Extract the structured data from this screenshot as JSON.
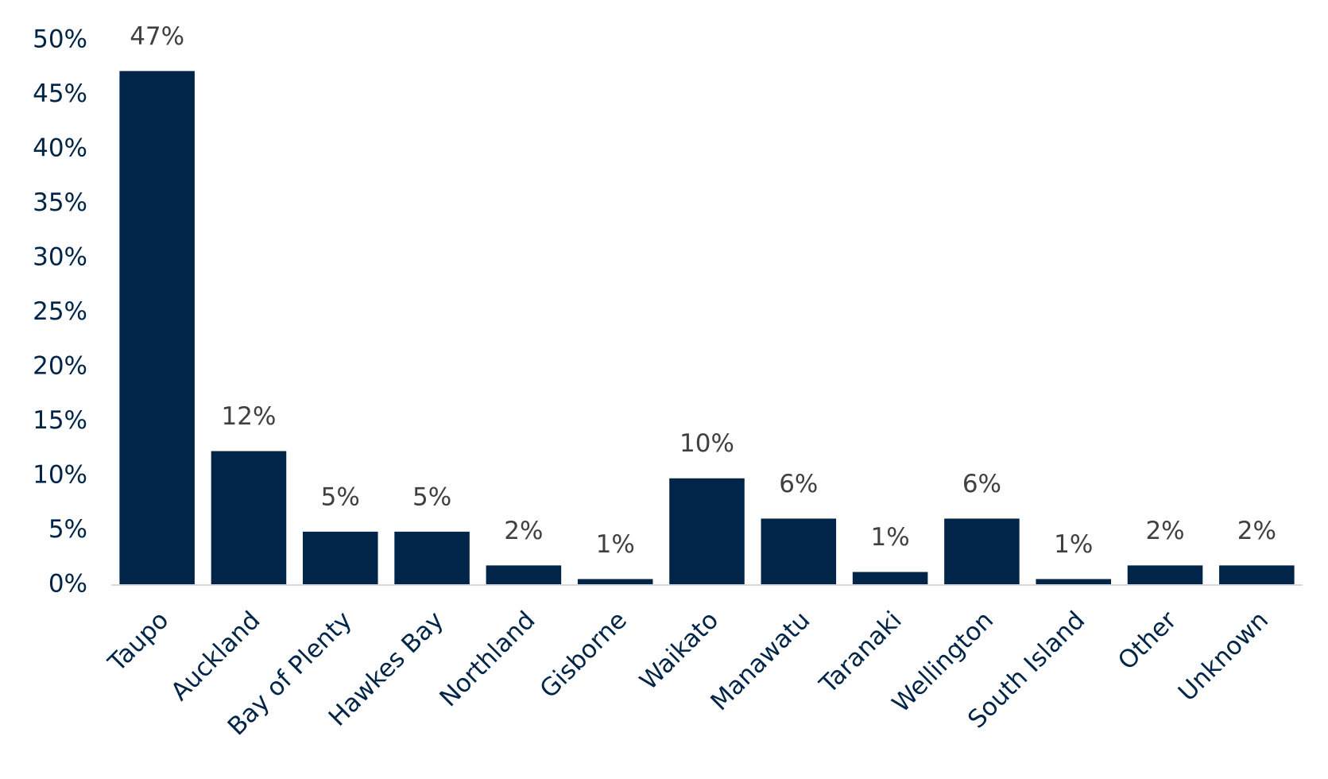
{
  "chart_data": {
    "type": "bar",
    "categories": [
      "Taupo",
      "Auckland",
      "Bay of Plenty",
      "Hawkes Bay",
      "Northland",
      "Gisborne",
      "Waikato",
      "Manawatu",
      "Taranaki",
      "Wellington",
      "South Island",
      "Other",
      "Unknown"
    ],
    "values": [
      47.2,
      12.3,
      4.9,
      4.9,
      1.8,
      0.55,
      9.8,
      6.1,
      1.2,
      6.1,
      0.55,
      1.8,
      1.8
    ],
    "value_labels": [
      "47%",
      "12%",
      "5%",
      "5%",
      "2%",
      "1%",
      "10%",
      "6%",
      "1%",
      "6%",
      "1%",
      "2%",
      "2%"
    ],
    "color": "#002548",
    "ylim": [
      0,
      50
    ],
    "yticks": [
      {
        "value": 0,
        "label": "0%"
      },
      {
        "value": 5,
        "label": "5%"
      },
      {
        "value": 10,
        "label": "10%"
      },
      {
        "value": 15,
        "label": "15%"
      },
      {
        "value": 20,
        "label": "20%"
      },
      {
        "value": 25,
        "label": "25%"
      },
      {
        "value": 30,
        "label": "30%"
      },
      {
        "value": 35,
        "label": "35%"
      },
      {
        "value": 40,
        "label": "40%"
      },
      {
        "value": 45,
        "label": "45%"
      },
      {
        "value": 50,
        "label": "50%"
      }
    ],
    "grid": false
  }
}
